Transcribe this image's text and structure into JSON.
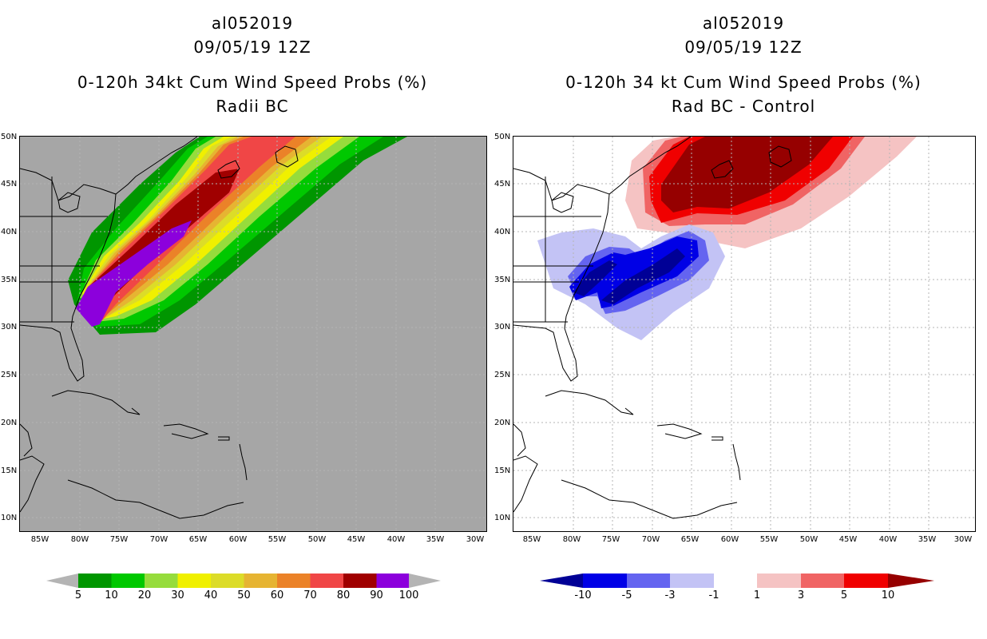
{
  "left_panel": {
    "title_line1": "al052019",
    "title_line2": "09/05/19 12Z",
    "title_line3": "0-120h 34kt Cum Wind Speed Probs (%)",
    "title_line4": "Radii BC",
    "colorbar_labels": [
      "5",
      "10",
      "20",
      "30",
      "40",
      "50",
      "60",
      "70",
      "80",
      "90",
      "100"
    ],
    "colorbar_colors": [
      "#009600",
      "#00c800",
      "#96dc3c",
      "#f0f000",
      "#dcdc28",
      "#e6b432",
      "#eb8228",
      "#f04646",
      "#a00000",
      "#8c00dc"
    ],
    "colorbar_ends": {
      "low": "#b4b4b4",
      "high": "#b4b4b4"
    }
  },
  "right_panel": {
    "title_line1": "al052019",
    "title_line2": "09/05/19 12Z",
    "title_line3": "0-120h 34 kt Cum Wind Speed Probs (%)",
    "title_line4": "Rad BC - Control",
    "colorbar_labels": [
      "-10",
      "-5",
      "-3",
      "-1",
      "1",
      "3",
      "5",
      "10"
    ],
    "colorbar_colors": [
      "#0000e6",
      "#6464f0",
      "#c3c3f5",
      "#ffffff",
      "#f5c3c3",
      "#f06464",
      "#f00000"
    ],
    "colorbar_ends": {
      "low": "#000096",
      "high": "#960000"
    }
  },
  "map": {
    "lat_labels": [
      "50N",
      "45N",
      "40N",
      "35N",
      "30N",
      "25N",
      "20N",
      "15N",
      "10N"
    ],
    "lon_labels": [
      "85W",
      "80W",
      "75W",
      "70W",
      "65W",
      "60W",
      "55W",
      "50W",
      "45W",
      "40W",
      "35W",
      "30W"
    ],
    "land_background": "#a6a6a6",
    "grid_color": "#b4b4b4"
  }
}
